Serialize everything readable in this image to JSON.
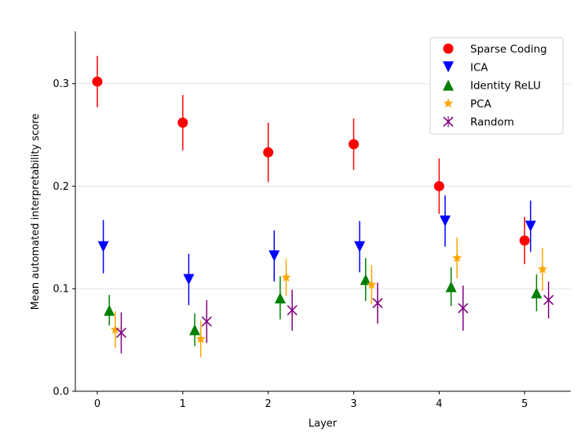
{
  "chart_data": {
    "type": "scatter",
    "title": "",
    "xlabel": "Layer",
    "ylabel": "Mean automated interpretability score",
    "xlim": [
      -0.257,
      5.54
    ],
    "ylim": [
      0,
      0.351
    ],
    "x_ticks": [
      "0",
      "1",
      "2",
      "3",
      "4",
      "5"
    ],
    "y_ticks": [
      "0.0",
      "0.1",
      "0.2",
      "0.3"
    ],
    "grid": "horizontal",
    "legend_position": "top-right",
    "x": [
      0,
      1,
      2,
      3,
      4,
      5
    ],
    "series": [
      {
        "name": "Sparse Coding",
        "marker": "circle",
        "color": "#ff0000",
        "x_offset": 0.0,
        "values": [
          0.302,
          0.262,
          0.233,
          0.241,
          0.2,
          0.147
        ],
        "errors": [
          0.025,
          0.027,
          0.029,
          0.025,
          0.027,
          0.023
        ]
      },
      {
        "name": "ICA",
        "marker": "triangle-down",
        "color": "#0000ff",
        "x_offset": 0.07,
        "values": [
          0.141,
          0.109,
          0.132,
          0.141,
          0.166,
          0.161
        ],
        "errors": [
          0.026,
          0.025,
          0.025,
          0.025,
          0.025,
          0.025
        ]
      },
      {
        "name": "Identity ReLU",
        "marker": "triangle-up",
        "color": "#008000",
        "x_offset": 0.14,
        "values": [
          0.079,
          0.06,
          0.091,
          0.109,
          0.102,
          0.096
        ],
        "errors": [
          0.015,
          0.016,
          0.021,
          0.021,
          0.019,
          0.018
        ]
      },
      {
        "name": "PCA",
        "marker": "star",
        "color": "#ffa500",
        "x_offset": 0.21,
        "values": [
          0.06,
          0.051,
          0.111,
          0.104,
          0.13,
          0.119
        ],
        "errors": [
          0.018,
          0.018,
          0.018,
          0.019,
          0.02,
          0.021
        ]
      },
      {
        "name": "Random",
        "marker": "x",
        "color": "#800080",
        "x_offset": 0.28,
        "values": [
          0.057,
          0.068,
          0.079,
          0.086,
          0.081,
          0.089
        ],
        "errors": [
          0.02,
          0.021,
          0.02,
          0.02,
          0.022,
          0.018
        ]
      }
    ]
  }
}
